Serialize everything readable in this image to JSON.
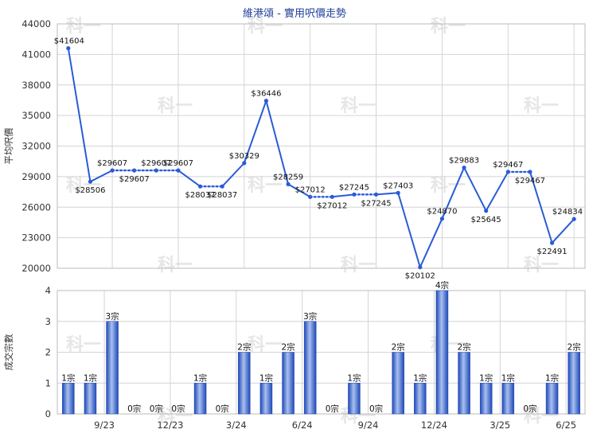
{
  "watermark": "科一",
  "colors": {
    "line": "#2a5bd7",
    "bar_dark": "#1e48b8",
    "bar_light": "#a9c0ee",
    "grid": "#d4d4d4",
    "axis": "#333333",
    "title": "#1f3f9a"
  },
  "chart_data": [
    {
      "type": "line",
      "title": "維港頌 - 實用呎價走勢",
      "ylabel": "平均呎價",
      "ylim": [
        20000,
        44000
      ],
      "yticks": [
        20000,
        23000,
        26000,
        29000,
        32000,
        35000,
        38000,
        41000,
        44000
      ],
      "grid": true,
      "series": [
        {
          "points": [
            {
              "x": 0,
              "y": 41604,
              "label": "$41604"
            },
            {
              "x": 1,
              "y": 28506,
              "label": "$28506"
            },
            {
              "x": 2,
              "y": 29607,
              "label": "$29607"
            },
            {
              "x": 3,
              "y": 29607,
              "label": "$29607"
            },
            {
              "x": 4,
              "y": 29607,
              "label": "$29607"
            },
            {
              "x": 5,
              "y": 29607,
              "label": "$29607"
            },
            {
              "x": 6,
              "y": 28037,
              "label": "$28037"
            },
            {
              "x": 7,
              "y": 28037,
              "label": "$28037"
            },
            {
              "x": 8,
              "y": 30329,
              "label": "$30329"
            },
            {
              "x": 9,
              "y": 36446,
              "label": "$36446"
            },
            {
              "x": 10,
              "y": 28259,
              "label": "$28259"
            },
            {
              "x": 11,
              "y": 27012,
              "label": "$27012"
            },
            {
              "x": 12,
              "y": 27012,
              "label": "$27012"
            },
            {
              "x": 13,
              "y": 27245,
              "label": "$27245"
            },
            {
              "x": 14,
              "y": 27245,
              "label": "$27245"
            },
            {
              "x": 15,
              "y": 27403,
              "label": "$27403"
            },
            {
              "x": 16,
              "y": 20102,
              "label": "$20102"
            },
            {
              "x": 17,
              "y": 24870,
              "label": "$24870"
            },
            {
              "x": 18,
              "y": 29883,
              "label": "$29883"
            },
            {
              "x": 19,
              "y": 25645,
              "label": "$25645"
            },
            {
              "x": 20,
              "y": 29467,
              "label": "$29467"
            },
            {
              "x": 21,
              "y": 29467,
              "label": "$29467"
            },
            {
              "x": 22,
              "y": 22491,
              "label": "$22491"
            },
            {
              "x": 23,
              "y": 24834,
              "label": "$24834"
            }
          ]
        }
      ]
    },
    {
      "type": "bar",
      "ylabel": "成交宗數",
      "ylim": [
        0,
        4
      ],
      "yticks": [
        0,
        1,
        2,
        3,
        4
      ],
      "grid": true,
      "x_tick_labels": [
        "9/23",
        "12/23",
        "3/24",
        "6/24",
        "9/24",
        "12/24",
        "3/25",
        "6/25"
      ],
      "values": [
        1,
        1,
        3,
        0,
        0,
        0,
        1,
        0,
        2,
        1,
        2,
        3,
        0,
        1,
        0,
        2,
        1,
        4,
        2,
        1,
        1,
        0,
        1,
        2
      ],
      "value_labels": [
        "1宗",
        "1宗",
        "3宗",
        "0宗",
        "0宗",
        "0宗",
        "1宗",
        "0宗",
        "2宗",
        "1宗",
        "2宗",
        "3宗",
        "0宗",
        "1宗",
        "0宗",
        "2宗",
        "1宗",
        "4宗",
        "2宗",
        "1宗",
        "1宗",
        "0宗",
        "1宗",
        "2宗"
      ]
    }
  ]
}
